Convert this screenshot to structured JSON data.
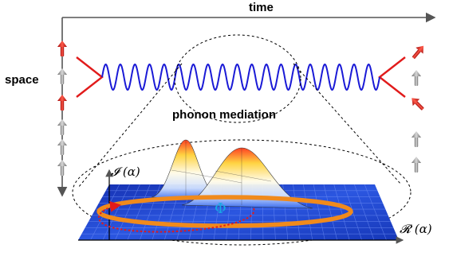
{
  "labels": {
    "time": "time",
    "space": "space",
    "phonon": "phonon mediation",
    "imag_axis": "𝓘 (α)",
    "real_axis": "𝓡 (α)",
    "phase": "Φ"
  },
  "colors": {
    "wave": "#1a1ad6",
    "vertex": "#e11b1b",
    "ring": "#f08a1c",
    "plane": "#1f3fc4",
    "phase_arrow": "#e11b1b",
    "phase_label": "#18a9e6",
    "spin_up_red": "#e11b1b",
    "spin_gray": "#8a8a8a"
  },
  "icons": {
    "left_spin_column": [
      "spin-up-red",
      "spin-up-gray",
      "spin-up-red",
      "spin-up-gray",
      "spin-up-gray",
      "spin-up-gray"
    ],
    "right_spin_column": [
      "spin-tilted-red",
      "spin-up-gray",
      "spin-tilted-red",
      "spin-up-gray",
      "spin-up-gray"
    ]
  }
}
